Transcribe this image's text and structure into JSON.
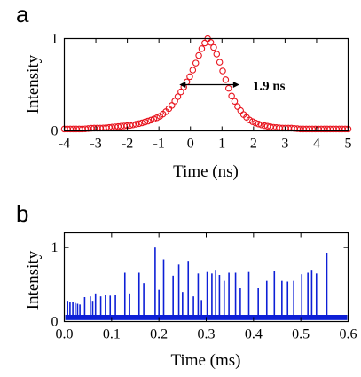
{
  "chart_data": [
    {
      "type": "scatter",
      "panel_label": "a",
      "xlabel": "Time (ns)",
      "ylabel": "Intensity",
      "xlim": [
        -4,
        5
      ],
      "ylim": [
        0,
        1
      ],
      "x_ticks": [
        "-4",
        "-3",
        "-2",
        "-1",
        "0",
        "1",
        "2",
        "3",
        "4",
        "5"
      ],
      "y_ticks": [
        "0",
        "1"
      ],
      "grid": false,
      "marker_color": "#e8141e",
      "marker": "open-circle",
      "series": [
        {
          "x": [
            -4.0,
            -3.7,
            -3.4,
            -3.1,
            -2.8,
            -2.5,
            -2.2,
            -1.9,
            -1.6,
            -1.3,
            -1.0,
            -0.8,
            -0.6,
            -0.4,
            -0.2,
            0.0,
            0.1,
            0.2,
            0.3,
            0.4,
            0.5,
            0.55,
            0.6,
            0.7,
            0.8,
            0.9,
            1.0,
            1.1,
            1.2,
            1.3,
            1.5,
            1.7,
            1.9,
            2.1,
            2.3,
            2.6,
            2.9,
            3.2,
            3.5,
            3.8,
            4.1,
            4.4,
            4.7,
            5.0
          ],
          "y": [
            0.02,
            0.02,
            0.02,
            0.03,
            0.03,
            0.04,
            0.05,
            0.06,
            0.08,
            0.11,
            0.15,
            0.2,
            0.27,
            0.37,
            0.48,
            0.6,
            0.68,
            0.76,
            0.85,
            0.92,
            0.98,
            1.0,
            0.98,
            0.93,
            0.86,
            0.77,
            0.67,
            0.57,
            0.47,
            0.38,
            0.26,
            0.17,
            0.11,
            0.08,
            0.06,
            0.04,
            0.03,
            0.03,
            0.02,
            0.02,
            0.02,
            0.02,
            0.02,
            0.02
          ]
        }
      ],
      "annotation": {
        "text": "1.9 ns",
        "x_from": -0.35,
        "x_to": 1.55,
        "y": 0.5
      }
    },
    {
      "type": "line",
      "panel_label": "b",
      "xlabel": "Time (ms)",
      "ylabel": "Intensity",
      "xlim": [
        0.0,
        0.6
      ],
      "ylim": [
        0,
        1.2
      ],
      "x_ticks": [
        "0.0",
        "0.1",
        "0.2",
        "0.3",
        "0.4",
        "0.5",
        "0.6"
      ],
      "y_ticks": [
        "0",
        "1"
      ],
      "grid": false,
      "line_color": "#0d1fd6",
      "baseline": 0.07,
      "pulses": {
        "t": [
          0.007,
          0.012,
          0.018,
          0.023,
          0.028,
          0.033,
          0.043,
          0.055,
          0.06,
          0.066,
          0.077,
          0.087,
          0.097,
          0.108,
          0.128,
          0.138,
          0.158,
          0.168,
          0.192,
          0.2,
          0.21,
          0.23,
          0.242,
          0.25,
          0.262,
          0.273,
          0.283,
          0.29,
          0.302,
          0.312,
          0.32,
          0.328,
          0.338,
          0.348,
          0.362,
          0.372,
          0.39,
          0.41,
          0.428,
          0.444,
          0.46,
          0.472,
          0.485,
          0.502,
          0.515,
          0.523,
          0.533,
          0.555
        ],
        "height": [
          0.28,
          0.27,
          0.26,
          0.25,
          0.24,
          0.23,
          0.33,
          0.34,
          0.28,
          0.38,
          0.34,
          0.36,
          0.35,
          0.36,
          0.66,
          0.38,
          0.66,
          0.52,
          1.0,
          0.43,
          0.84,
          0.62,
          0.77,
          0.4,
          0.82,
          0.34,
          0.65,
          0.29,
          0.67,
          0.65,
          0.7,
          0.63,
          0.55,
          0.66,
          0.66,
          0.45,
          0.67,
          0.45,
          0.55,
          0.69,
          0.55,
          0.54,
          0.55,
          0.64,
          0.66,
          0.7,
          0.65,
          0.93
        ]
      }
    }
  ]
}
